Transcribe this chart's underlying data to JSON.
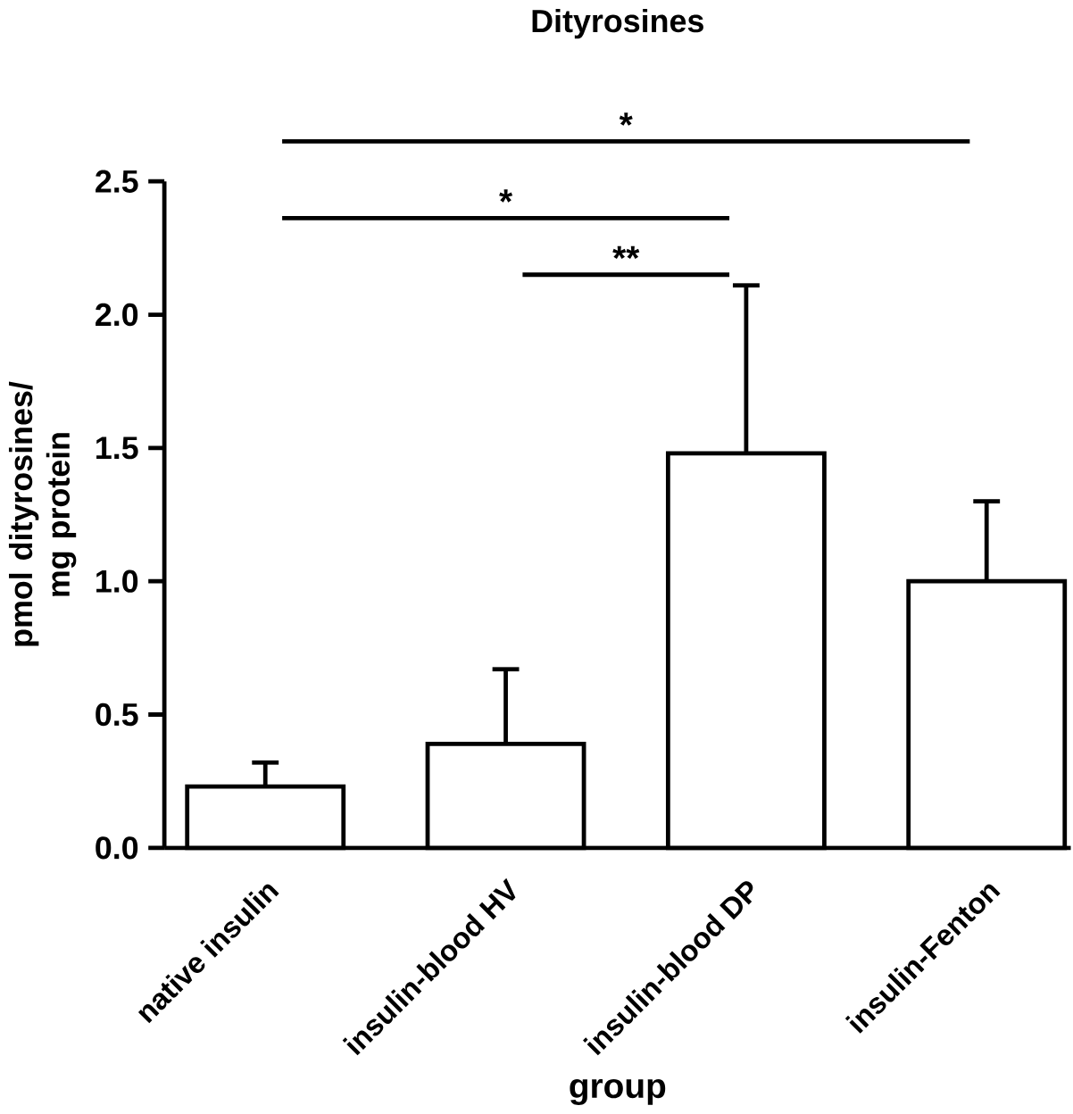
{
  "chart_data": {
    "type": "bar",
    "title": "Dityrosines",
    "xlabel": "group",
    "ylabel": "pmol dityrosines/ mg protein",
    "categories": [
      "native insulin",
      "insulin-blood HV",
      "insulin-blood DP",
      "insulin-Fenton"
    ],
    "values": [
      0.23,
      0.39,
      1.48,
      1.0
    ],
    "errors": [
      0.09,
      0.28,
      0.63,
      0.3
    ],
    "color": "#ffffff",
    "ylim": [
      0,
      2.5
    ],
    "yticks": [
      {
        "value": 0,
        "label": "0.0"
      },
      0.5,
      {
        "value": 1,
        "label": "1.0"
      },
      1.5,
      {
        "value": 2,
        "label": "2.0"
      },
      2.5
    ],
    "annotations": [
      "*",
      "*",
      "**"
    ]
  }
}
